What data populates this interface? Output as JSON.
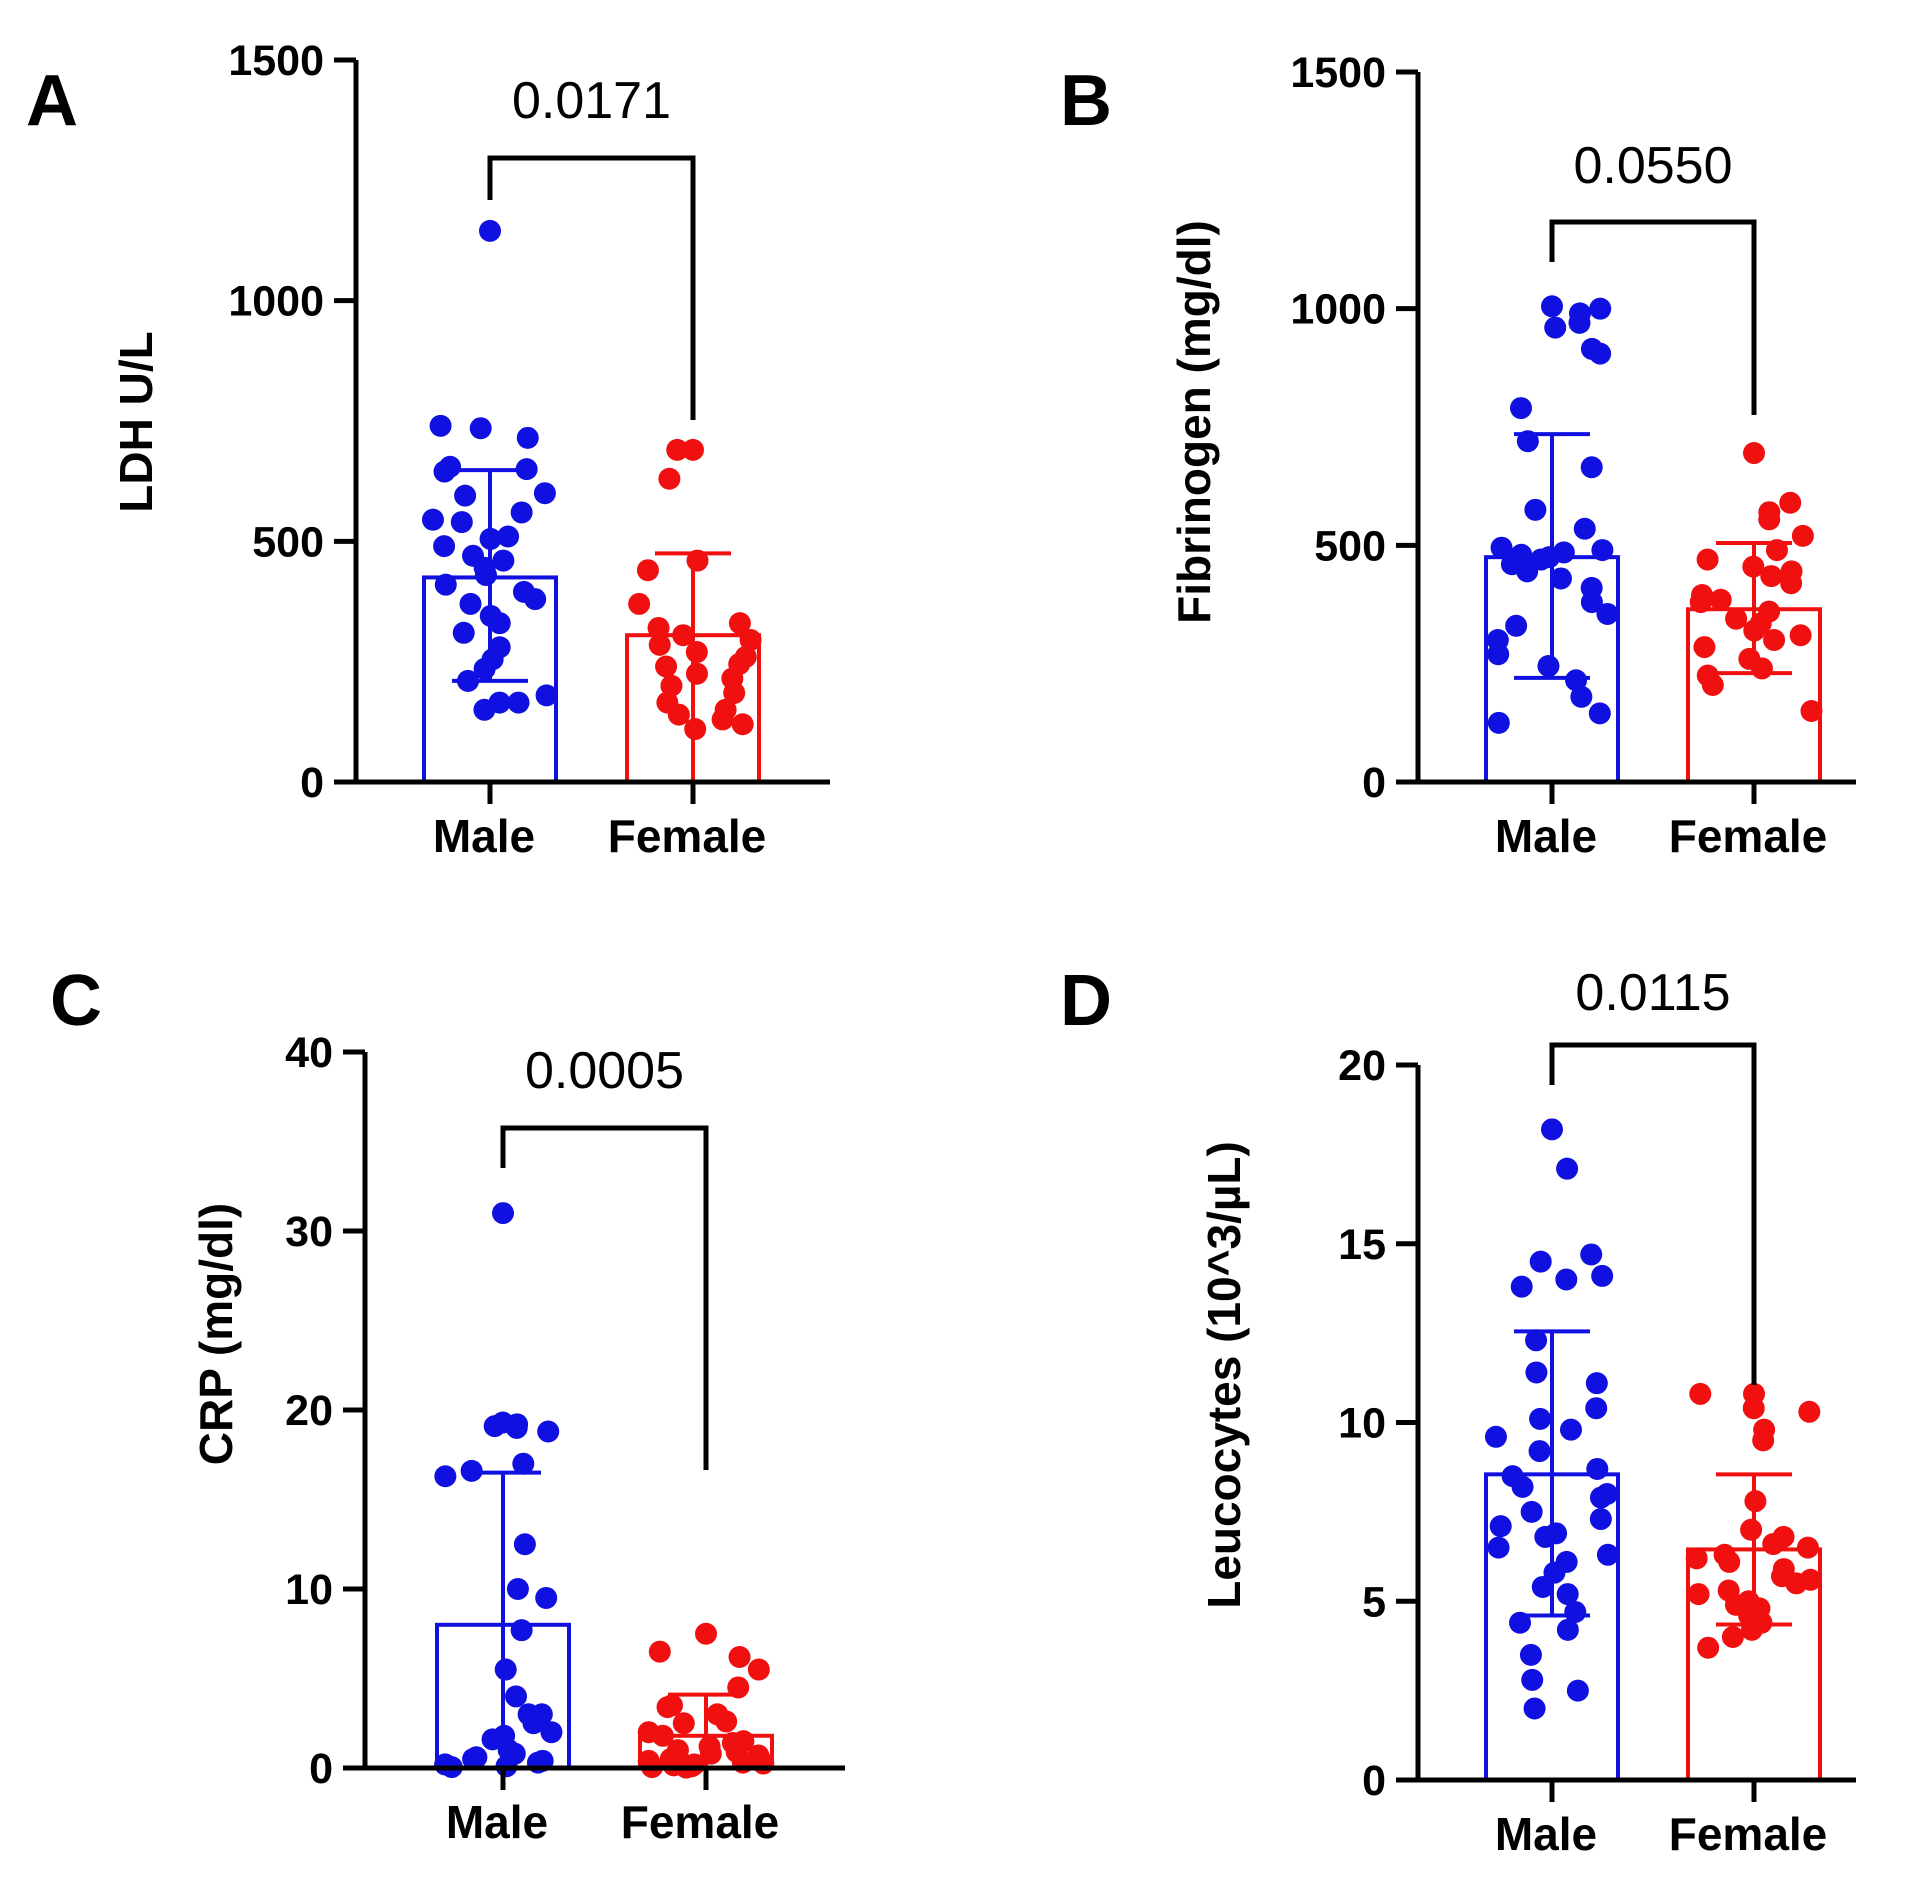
{
  "chart_data": [
    {
      "type": "bar",
      "panel": "A",
      "ylabel": "LDH U/L",
      "ylim": [
        0,
        1500
      ],
      "yticks": [
        0,
        500,
        1000,
        1500
      ],
      "categories": [
        "Male",
        "Female"
      ],
      "colors": [
        "#1010e0",
        "#f01010"
      ],
      "means": [
        425,
        305
      ],
      "sd_upper": [
        648,
        475
      ],
      "sd_lower": [
        210,
        0
      ],
      "pvalue": "0.0171",
      "points": [
        [
          1145,
          740,
          735,
          715,
          655,
          650,
          645,
          600,
          595,
          560,
          545,
          540,
          510,
          505,
          490,
          470,
          460,
          445,
          430,
          410,
          395,
          380,
          370,
          345,
          330,
          310,
          280,
          255,
          235,
          210,
          180,
          165,
          165,
          150
        ],
        [
          690,
          690,
          630,
          460,
          440,
          370,
          330,
          320,
          305,
          295,
          285,
          270,
          260,
          245,
          240,
          225,
          215,
          200,
          185,
          165,
          150,
          140,
          130,
          120,
          110
        ]
      ]
    },
    {
      "type": "bar",
      "panel": "B",
      "ylabel": "Fibrinogen (mg/dl)",
      "ylim": [
        0,
        1500
      ],
      "yticks": [
        0,
        500,
        1000,
        1500
      ],
      "categories": [
        "Male",
        "Female"
      ],
      "colors": [
        "#1010e0",
        "#f01010"
      ],
      "means": [
        475,
        365
      ],
      "sd_upper": [
        735,
        505
      ],
      "sd_lower": [
        220,
        230
      ],
      "pvalue": "0.0550",
      "points": [
        [
          1005,
          1000,
          990,
          970,
          960,
          915,
          905,
          790,
          720,
          665,
          575,
          535,
          495,
          490,
          485,
          480,
          475,
          470,
          460,
          445,
          430,
          410,
          380,
          355,
          330,
          300,
          270,
          245,
          215,
          180,
          145,
          125
        ],
        [
          695,
          590,
          570,
          555,
          520,
          490,
          470,
          455,
          445,
          435,
          420,
          395,
          385,
          380,
          360,
          345,
          335,
          320,
          310,
          300,
          285,
          260,
          240,
          225,
          205,
          150
        ]
      ]
    },
    {
      "type": "bar",
      "panel": "C",
      "ylabel": "CRP (mg/dl)",
      "ylim": [
        0,
        40
      ],
      "yticks": [
        0,
        10,
        20,
        30,
        40
      ],
      "categories": [
        "Male",
        "Female"
      ],
      "colors": [
        "#1010e0",
        "#f01010"
      ],
      "means": [
        8,
        1.8
      ],
      "sd_upper": [
        16.5,
        4.1
      ],
      "sd_lower": [
        0,
        0
      ],
      "pvalue": "0.0005",
      "points": [
        [
          31,
          19.3,
          19.2,
          19.1,
          19,
          18.8,
          17,
          16.6,
          16.3,
          12.5,
          10,
          9.5,
          7.7,
          5.5,
          4,
          3,
          3,
          2.5,
          2,
          1.8,
          1.6,
          1,
          0.8,
          0.6,
          0.5,
          0.4,
          0.3,
          0.2,
          0.1,
          0.05
        ],
        [
          7.5,
          6.5,
          6.2,
          5.5,
          4.5,
          3.5,
          3.4,
          3,
          2.6,
          2.5,
          2,
          1.8,
          1.5,
          1.4,
          1.2,
          1,
          0.9,
          0.8,
          0.7,
          0.6,
          0.5,
          0.4,
          0.35,
          0.3,
          0.25,
          0.2,
          0.15,
          0.1,
          0.05,
          0.02
        ]
      ]
    },
    {
      "type": "bar",
      "panel": "D",
      "ylabel": "Leucocytes  (10^3/µL)",
      "ylim": [
        0,
        20
      ],
      "yticks": [
        0,
        5,
        10,
        15,
        20
      ],
      "categories": [
        "Male",
        "Female"
      ],
      "colors": [
        "#1010e0",
        "#f01010"
      ],
      "means": [
        8.55,
        6.45
      ],
      "sd_upper": [
        12.55,
        8.55
      ],
      "sd_lower": [
        4.6,
        4.35
      ],
      "pvalue": "0.0115",
      "points": [
        [
          18.2,
          17.1,
          14.7,
          14.5,
          14.1,
          14,
          13.8,
          12.3,
          11.4,
          11.1,
          10.4,
          10.1,
          9.8,
          9.6,
          9.2,
          8.7,
          8.5,
          8.2,
          8,
          7.9,
          7.5,
          7.3,
          7.1,
          6.9,
          6.8,
          6.5,
          6.3,
          6.1,
          5.8,
          5.4,
          5.2,
          4.7,
          4.4,
          4.2,
          3.5,
          2.8,
          2.5,
          2
        ],
        [
          10.8,
          10.8,
          10.4,
          10.3,
          9.8,
          9.5,
          7.8,
          7,
          6.8,
          6.6,
          6.5,
          6.3,
          6.2,
          6.1,
          5.9,
          5.7,
          5.6,
          5.5,
          5.3,
          5.2,
          5,
          4.9,
          4.8,
          4.6,
          4.4,
          4.2,
          4,
          3.7
        ]
      ]
    }
  ]
}
